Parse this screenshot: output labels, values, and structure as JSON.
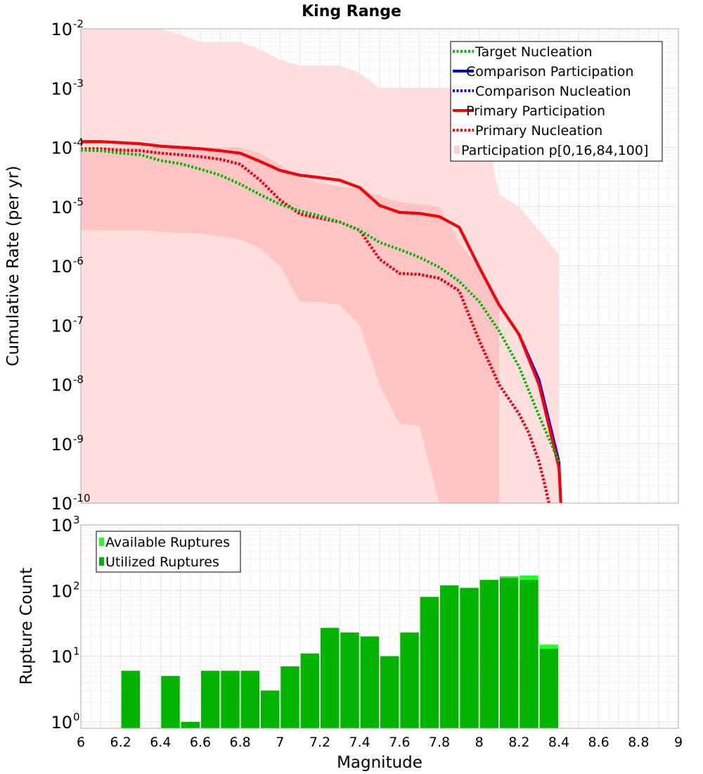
{
  "chart_data": {
    "type": "line",
    "title": "King Range",
    "xlabel": "Magnitude",
    "xlim": [
      6,
      9
    ],
    "xticks": [
      "6",
      "6.2",
      "6.4",
      "6.6",
      "6.8",
      "7",
      "7.2",
      "7.4",
      "7.6",
      "7.8",
      "8",
      "8.2",
      "8.4",
      "8.6",
      "8.8",
      "9"
    ],
    "top_panel": {
      "ylabel": "Cumulative Rate (per yr)",
      "yscale": "log",
      "ylim": [
        1e-10,
        0.01
      ],
      "yticks": [
        {
          "value": 1e-10,
          "base": "10",
          "exp": "-10"
        },
        {
          "value": 1e-09,
          "base": "10",
          "exp": "-9"
        },
        {
          "value": 1e-08,
          "base": "10",
          "exp": "-8"
        },
        {
          "value": 1e-07,
          "base": "10",
          "exp": "-7"
        },
        {
          "value": 1e-06,
          "base": "10",
          "exp": "-6"
        },
        {
          "value": 1e-05,
          "base": "10",
          "exp": "-5"
        },
        {
          "value": 0.0001,
          "base": "10",
          "exp": "-4"
        },
        {
          "value": 0.001,
          "base": "10",
          "exp": "-3"
        },
        {
          "value": 0.01,
          "base": "10",
          "exp": "-2"
        }
      ],
      "bands": [
        {
          "name": "Participation p0-100",
          "color": "#ffdede",
          "x": [
            6.0,
            6.1,
            6.2,
            6.3,
            6.4,
            6.5,
            6.6,
            6.7,
            6.8,
            6.9,
            7.0,
            7.1,
            7.2,
            7.3,
            7.4,
            7.5,
            7.6,
            7.7,
            7.8,
            7.9,
            8.0,
            8.1,
            8.2,
            8.3,
            8.4
          ],
          "upper": [
            0.01,
            0.01,
            0.01,
            0.01,
            0.01,
            0.008,
            0.006,
            0.006,
            0.006,
            0.0045,
            0.003,
            0.0024,
            0.0024,
            0.0024,
            0.0018,
            0.001,
            0.001,
            0.001,
            0.001,
            0.001,
            0.0006,
            1.6e-05,
            1e-05,
            4e-06,
            1.6e-06
          ],
          "lower": [
            1e-10,
            1e-10,
            1e-10,
            1e-10,
            1e-10,
            1e-10,
            1e-10,
            1e-10,
            1e-10,
            1e-10,
            1e-10,
            1e-10,
            1e-10,
            1e-10,
            1e-10,
            1e-10,
            1e-10,
            1e-10,
            1e-10,
            1e-10,
            1e-10,
            1e-10,
            1e-10,
            1e-10,
            1e-10
          ]
        },
        {
          "name": "Participation p16-84",
          "color": "#ffc4c4",
          "x": [
            6.0,
            6.1,
            6.2,
            6.3,
            6.4,
            6.5,
            6.6,
            6.7,
            6.8,
            6.9,
            7.0,
            7.1,
            7.2,
            7.3,
            7.4,
            7.5,
            7.6,
            7.7,
            7.8,
            7.9,
            8.0,
            8.1
          ],
          "upper": [
            9e-05,
            0.0001,
            0.0001,
            0.0001,
            0.0001,
            0.0001,
            0.0001,
            0.0001,
            0.0001,
            8e-05,
            5e-05,
            3e-05,
            2.5e-05,
            2.2e-05,
            2e-05,
            1.5e-05,
            1.2e-05,
            1.1e-05,
            1e-05,
            2.5e-06,
            9e-07,
            2e-07
          ],
          "lower": [
            4e-06,
            4e-06,
            4e-06,
            4e-06,
            3.8e-06,
            3.6e-06,
            3.5e-06,
            3.2e-06,
            2.8e-06,
            2e-06,
            1e-06,
            2.5e-07,
            2.5e-07,
            2.2e-07,
            1e-07,
            1e-08,
            2.2e-09,
            2e-09,
            1e-10,
            1e-10,
            1e-10,
            1e-10
          ]
        }
      ],
      "series": [
        {
          "name": "Comparison Participation",
          "color": "#0000ee",
          "style": "solid",
          "width": 4,
          "x": [
            6.0,
            6.1,
            6.2,
            6.3,
            6.4,
            6.5,
            6.6,
            6.7,
            6.8,
            6.9,
            7.0,
            7.1,
            7.2,
            7.3,
            7.4,
            7.5,
            7.6,
            7.7,
            7.8,
            7.9,
            8.0,
            8.1,
            8.2,
            8.3,
            8.4,
            8.41
          ],
          "y": [
            0.000125,
            0.000125,
            0.00012,
            0.000115,
            0.000105,
            0.0001,
            9.5e-05,
            8.8e-05,
            8e-05,
            5.8e-05,
            4.1e-05,
            3.4e-05,
            3.1e-05,
            2.8e-05,
            2.1e-05,
            1.05e-05,
            8e-06,
            7.7e-06,
            6.8e-06,
            4.5e-06,
            9.5e-07,
            2.2e-07,
            7e-08,
            1.2e-08,
            5e-10,
            1e-10
          ]
        },
        {
          "name": "Comparison Nucleation",
          "color": "#0000ee",
          "style": "dotted",
          "width": 4,
          "x": [
            6.0,
            6.1,
            6.2,
            6.3,
            6.4,
            6.5,
            6.6,
            6.7,
            6.8,
            6.9,
            7.0,
            7.1,
            7.2,
            7.3,
            7.4,
            7.5,
            7.6,
            7.7,
            7.8,
            7.9,
            8.0,
            8.1,
            8.2,
            8.25,
            8.3,
            8.33,
            8.35
          ],
          "y": [
            9.5e-05,
            9.5e-05,
            9e-05,
            8.8e-05,
            8e-05,
            7.5e-05,
            7e-05,
            6.3e-05,
            5.2e-05,
            2.8e-05,
            1.3e-05,
            7.5e-06,
            6.4e-06,
            5.5e-06,
            4e-06,
            1.3e-06,
            7.5e-07,
            7.2e-07,
            6.2e-07,
            3.8e-07,
            5.5e-08,
            1e-08,
            3.2e-09,
            1.5e-09,
            5e-10,
            2e-10,
            1e-10
          ]
        },
        {
          "name": "Primary Participation",
          "color": "#ff0000",
          "style": "solid",
          "width": 4,
          "x": [
            6.0,
            6.1,
            6.2,
            6.3,
            6.4,
            6.5,
            6.6,
            6.7,
            6.8,
            6.9,
            7.0,
            7.1,
            7.2,
            7.3,
            7.4,
            7.5,
            7.6,
            7.7,
            7.8,
            7.9,
            8.0,
            8.1,
            8.2,
            8.3,
            8.4,
            8.41
          ],
          "y": [
            0.000125,
            0.000125,
            0.00012,
            0.000115,
            0.000105,
            0.0001,
            9.5e-05,
            8.8e-05,
            8e-05,
            5.8e-05,
            4.1e-05,
            3.4e-05,
            3.1e-05,
            2.8e-05,
            2.1e-05,
            1.05e-05,
            8e-06,
            7.7e-06,
            6.8e-06,
            4.5e-06,
            9.5e-07,
            2.2e-07,
            7e-08,
            1e-08,
            4e-10,
            1e-10
          ]
        },
        {
          "name": "Primary Nucleation",
          "color": "#ff0000",
          "style": "dotted",
          "width": 4,
          "x": [
            6.0,
            6.1,
            6.2,
            6.3,
            6.4,
            6.5,
            6.6,
            6.7,
            6.8,
            6.9,
            7.0,
            7.1,
            7.2,
            7.3,
            7.4,
            7.5,
            7.6,
            7.7,
            7.8,
            7.9,
            8.0,
            8.1,
            8.2,
            8.25,
            8.3,
            8.33,
            8.35
          ],
          "y": [
            9.5e-05,
            9.5e-05,
            9e-05,
            8.8e-05,
            8e-05,
            7.5e-05,
            7e-05,
            6.3e-05,
            5.2e-05,
            2.8e-05,
            1.3e-05,
            7.5e-06,
            6.4e-06,
            5.5e-06,
            4e-06,
            1.3e-06,
            7.5e-07,
            7.2e-07,
            6.2e-07,
            3.8e-07,
            5.5e-08,
            1e-08,
            3.2e-09,
            1.5e-09,
            5e-10,
            2e-10,
            1e-10
          ]
        },
        {
          "name": "Target Nucleation",
          "color": "#00bb00",
          "style": "dotted",
          "width": 4,
          "x": [
            6.0,
            6.1,
            6.2,
            6.3,
            6.4,
            6.5,
            6.6,
            6.7,
            6.8,
            6.9,
            7.0,
            7.1,
            7.2,
            7.3,
            7.4,
            7.5,
            7.6,
            7.7,
            7.8,
            7.9,
            8.0,
            8.1,
            8.2,
            8.3,
            8.4
          ],
          "y": [
            9e-05,
            8.8e-05,
            8e-05,
            7.5e-05,
            6e-05,
            5.3e-05,
            4.3e-05,
            3.4e-05,
            2.4e-05,
            1.6e-05,
            1.1e-05,
            8.5e-06,
            7e-06,
            5.5e-06,
            4e-06,
            2.5e-06,
            1.9e-06,
            1.4e-06,
            9.5e-07,
            5.5e-07,
            2.5e-07,
            8e-08,
            2e-08,
            3e-09,
            5e-10
          ]
        }
      ],
      "legend": {
        "position": "top-right",
        "entries": [
          {
            "label": "Target Nucleation",
            "color": "#00bb00",
            "style": "dotted"
          },
          {
            "label": "Comparison Participation",
            "color": "#0000ee",
            "style": "solid"
          },
          {
            "label": " Comparison Nucleation",
            "color": "#0000ee",
            "style": "dotted"
          },
          {
            "label": "Primary Participation",
            "color": "#ff0000",
            "style": "solid"
          },
          {
            "label": " Primary Nucleation",
            "color": "#ff0000",
            "style": "dotted"
          },
          {
            "label": "Participation p[0,16,84,100]",
            "color": "#ffd0d0",
            "style": "box"
          }
        ]
      }
    },
    "bottom_panel": {
      "ylabel": "Rupture Count",
      "yscale": "log",
      "ylim": [
        0.8,
        1000
      ],
      "yticks": [
        {
          "value": 1,
          "base": "10",
          "exp": "0"
        },
        {
          "value": 10,
          "base": "10",
          "exp": "1"
        },
        {
          "value": 100,
          "base": "10",
          "exp": "2"
        },
        {
          "value": 1000,
          "base": "10",
          "exp": "3"
        }
      ],
      "bin_width": 0.1,
      "bin_starts": [
        6.2,
        6.4,
        6.5,
        6.6,
        6.7,
        6.8,
        6.9,
        7.0,
        7.1,
        7.2,
        7.3,
        7.4,
        7.5,
        7.6,
        7.7,
        7.8,
        7.9,
        8.0,
        8.1,
        8.2,
        8.3
      ],
      "series": [
        {
          "name": "Available Ruptures",
          "color": "#22ff22",
          "values": [
            6,
            5,
            1,
            6,
            6,
            6,
            3,
            7,
            11,
            27,
            23,
            20,
            10,
            23,
            80,
            120,
            110,
            145,
            165,
            170,
            15
          ]
        },
        {
          "name": "Utilized Ruptures",
          "color": "#00b400",
          "values": [
            6,
            5,
            1,
            6,
            6,
            6,
            3,
            7,
            11,
            27,
            23,
            20,
            10,
            23,
            80,
            120,
            110,
            145,
            155,
            145,
            13
          ]
        }
      ],
      "legend": {
        "position": "top-left",
        "entries": [
          {
            "label": "Available Ruptures",
            "color": "#22ff22"
          },
          {
            "label": "Utilized Ruptures",
            "color": "#00b400"
          }
        ]
      }
    }
  }
}
